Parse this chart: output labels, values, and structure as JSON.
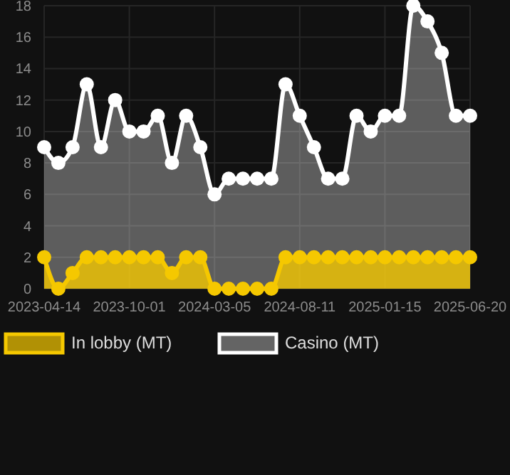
{
  "chart_data": {
    "type": "area",
    "categories": [
      "2023-04-14",
      null,
      null,
      null,
      null,
      null,
      "2023-10-01",
      null,
      null,
      null,
      null,
      null,
      "2024-03-05",
      null,
      null,
      null,
      null,
      null,
      "2024-08-11",
      null,
      null,
      null,
      null,
      null,
      "2025-01-15",
      null,
      null,
      null,
      null,
      null,
      "2025-06-20"
    ],
    "series": [
      {
        "name": "In lobby (MT)",
        "color": "#f5c800",
        "values": [
          2,
          0,
          1,
          2,
          2,
          2,
          2,
          2,
          2,
          1,
          2,
          2,
          0,
          0,
          0,
          0,
          0,
          2,
          2,
          2,
          2,
          2,
          2,
          2,
          2,
          2,
          2,
          2,
          2,
          2,
          2
        ]
      },
      {
        "name": "Casino (MT)",
        "color": "#ffffff",
        "values": [
          9,
          8,
          9,
          13,
          9,
          12,
          10,
          10,
          11,
          8,
          11,
          9,
          6,
          7,
          7,
          7,
          7,
          13,
          11,
          9,
          7,
          7,
          11,
          10,
          11,
          11,
          18,
          17,
          15,
          11,
          11
        ]
      }
    ],
    "ylim": [
      0,
      18
    ],
    "yticks": [
      0,
      2,
      4,
      6,
      8,
      10,
      12,
      14,
      16,
      18
    ],
    "grid": true,
    "legend": "bottom",
    "marker": "circle"
  }
}
